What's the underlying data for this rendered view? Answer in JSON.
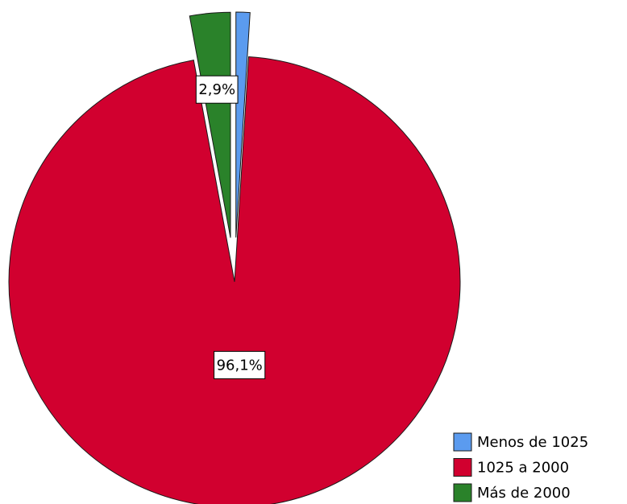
{
  "chart_data": {
    "type": "pie",
    "categories": [
      "Menos de 1025",
      "1025 a 2000",
      "Más de 2000"
    ],
    "values": [
      1.0,
      96.1,
      2.9
    ],
    "value_labels": [
      null,
      "96,1%",
      "2,9%"
    ],
    "colors": [
      "#5b9bef",
      "#d1002f",
      "#2a822a"
    ],
    "legend": "bottom-right"
  }
}
